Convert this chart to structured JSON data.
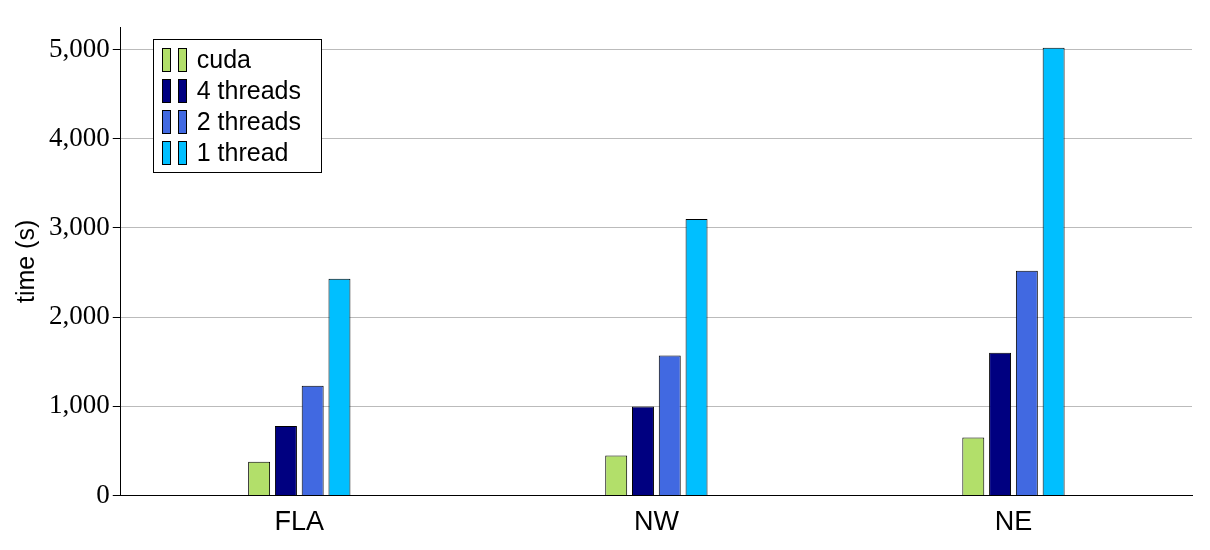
{
  "chart_data": {
    "type": "bar",
    "ylabel": "time (s)",
    "categories": [
      "FLA",
      "NW",
      "NE"
    ],
    "series": [
      {
        "name": "cuda",
        "color": "#b2df6a",
        "values": [
          380,
          450,
          650
        ]
      },
      {
        "name": "4 threads",
        "color": "#000080",
        "values": [
          780,
          1000,
          1600
        ]
      },
      {
        "name": "2 threads",
        "color": "#4169e1",
        "values": [
          1230,
          1570,
          2520
        ]
      },
      {
        "name": "1 thread",
        "color": "#00bfff",
        "values": [
          2430,
          3100,
          5020
        ]
      }
    ],
    "ylim": [
      0,
      5250
    ],
    "yticks": [
      {
        "value": 0,
        "label": "0"
      },
      {
        "value": 1000,
        "label": "1,000"
      },
      {
        "value": 2000,
        "label": "2,000"
      },
      {
        "value": 3000,
        "label": "3,000"
      },
      {
        "value": 4000,
        "label": "4,000"
      },
      {
        "value": 5000,
        "label": "5,000"
      }
    ],
    "grid": "y",
    "legend": "top left"
  }
}
